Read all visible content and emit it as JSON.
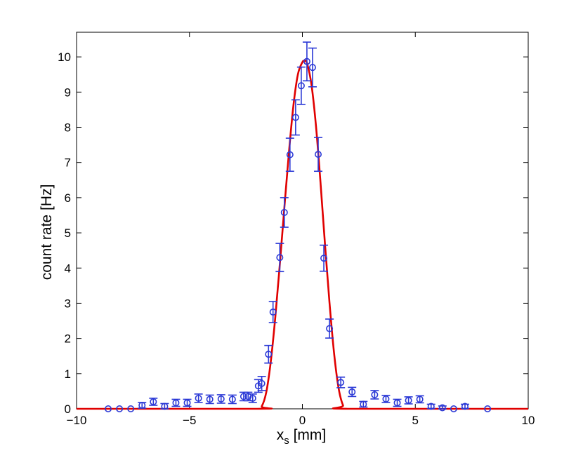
{
  "chart_data": {
    "type": "scatter",
    "xlabel": "x",
    "xlabel_sub": "s",
    "xlabel_unit": " [mm]",
    "ylabel": "count rate [Hz]",
    "xlim": [
      -10,
      10
    ],
    "ylim": [
      0,
      10.7
    ],
    "xticks": [
      -10,
      -5,
      0,
      5,
      10
    ],
    "xtick_labels": [
      "−10",
      "−5",
      "0",
      "5",
      "10"
    ],
    "yticks": [
      0,
      1,
      2,
      3,
      4,
      5,
      6,
      7,
      8,
      9,
      10
    ],
    "ytick_labels": [
      "0",
      "1",
      "2",
      "3",
      "4",
      "5",
      "6",
      "7",
      "8",
      "9",
      "10"
    ],
    "grid": false,
    "colors": {
      "data": "#2b39d6",
      "fit": "#e00000",
      "axes": "#000000"
    },
    "measurements": {
      "marker": "circle",
      "points": [
        {
          "x": -8.6,
          "y": 0.0,
          "err": 0
        },
        {
          "x": -8.1,
          "y": 0.0,
          "err": 0
        },
        {
          "x": -7.6,
          "y": 0.0,
          "err": 0
        },
        {
          "x": -7.1,
          "y": 0.1,
          "err": 0.08
        },
        {
          "x": -6.6,
          "y": 0.2,
          "err": 0.1
        },
        {
          "x": -6.1,
          "y": 0.07,
          "err": 0.08
        },
        {
          "x": -5.6,
          "y": 0.17,
          "err": 0.1
        },
        {
          "x": -5.1,
          "y": 0.17,
          "err": 0.1
        },
        {
          "x": -4.6,
          "y": 0.3,
          "err": 0.12
        },
        {
          "x": -4.1,
          "y": 0.27,
          "err": 0.12
        },
        {
          "x": -3.6,
          "y": 0.28,
          "err": 0.12
        },
        {
          "x": -3.1,
          "y": 0.27,
          "err": 0.12
        },
        {
          "x": -2.6,
          "y": 0.35,
          "err": 0.12
        },
        {
          "x": -2.4,
          "y": 0.35,
          "err": 0.12
        },
        {
          "x": -2.2,
          "y": 0.3,
          "err": 0.12
        },
        {
          "x": -1.95,
          "y": 0.65,
          "err": 0.18
        },
        {
          "x": -1.8,
          "y": 0.72,
          "err": 0.2
        },
        {
          "x": -1.5,
          "y": 1.55,
          "err": 0.25
        },
        {
          "x": -1.3,
          "y": 2.75,
          "err": 0.3
        },
        {
          "x": -1.0,
          "y": 4.3,
          "err": 0.4
        },
        {
          "x": -0.8,
          "y": 5.58,
          "err": 0.42
        },
        {
          "x": -0.55,
          "y": 7.22,
          "err": 0.47
        },
        {
          "x": -0.3,
          "y": 8.28,
          "err": 0.5
        },
        {
          "x": -0.05,
          "y": 9.18,
          "err": 0.53
        },
        {
          "x": 0.2,
          "y": 9.87,
          "err": 0.55
        },
        {
          "x": 0.45,
          "y": 9.7,
          "err": 0.55
        },
        {
          "x": 0.7,
          "y": 7.23,
          "err": 0.48
        },
        {
          "x": 0.95,
          "y": 4.28,
          "err": 0.37
        },
        {
          "x": 1.2,
          "y": 2.28,
          "err": 0.27
        },
        {
          "x": 1.7,
          "y": 0.75,
          "err": 0.15
        },
        {
          "x": 2.2,
          "y": 0.48,
          "err": 0.13
        },
        {
          "x": 2.7,
          "y": 0.13,
          "err": 0.08
        },
        {
          "x": 3.2,
          "y": 0.4,
          "err": 0.12
        },
        {
          "x": 3.7,
          "y": 0.28,
          "err": 0.1
        },
        {
          "x": 4.2,
          "y": 0.17,
          "err": 0.1
        },
        {
          "x": 4.7,
          "y": 0.24,
          "err": 0.1
        },
        {
          "x": 5.2,
          "y": 0.27,
          "err": 0.1
        },
        {
          "x": 5.7,
          "y": 0.07,
          "err": 0.06
        },
        {
          "x": 6.2,
          "y": 0.03,
          "err": 0.05
        },
        {
          "x": 6.7,
          "y": 0.0,
          "err": 0
        },
        {
          "x": 7.2,
          "y": 0.07,
          "err": 0.06
        },
        {
          "x": 8.2,
          "y": 0.0,
          "err": 0
        }
      ]
    },
    "fit_curve": {
      "type": "line",
      "x": [
        -10,
        -2.0,
        -1.8,
        -1.6,
        -1.4,
        -1.2,
        -1.0,
        -0.8,
        -0.6,
        -0.4,
        -0.2,
        0.0,
        0.1,
        0.2,
        0.4,
        0.6,
        0.8,
        1.0,
        1.2,
        1.4,
        1.6,
        1.8,
        2.0,
        10
      ],
      "y": [
        0,
        0,
        0.07,
        0.47,
        1.34,
        2.6,
        4.1,
        5.7,
        7.25,
        8.6,
        9.5,
        9.85,
        9.88,
        9.83,
        9.22,
        8.05,
        6.45,
        4.68,
        3.02,
        1.6,
        0.6,
        0.1,
        0,
        0
      ]
    }
  }
}
